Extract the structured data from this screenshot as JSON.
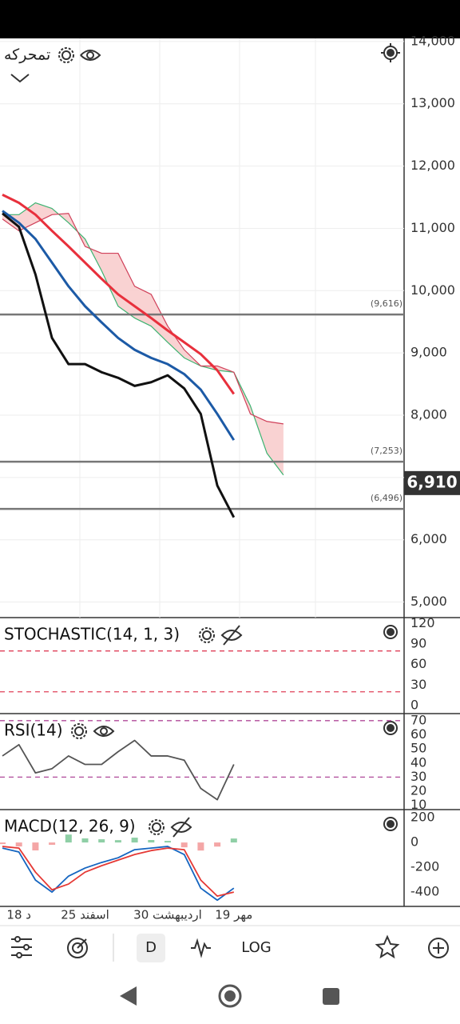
{
  "symbol": "تمحرکه",
  "toolbar": {
    "interval": "D",
    "log": "LOG"
  },
  "chart_data": [
    {
      "type": "line",
      "categories": [
        null,
        "18 د",
        null,
        null,
        null,
        "25 اسفند",
        null,
        null,
        null,
        null,
        "30 اردیبهشت",
        null,
        null,
        null,
        "19 مهر",
        null,
        null,
        null
      ],
      "ylim": [
        4750,
        14050
      ],
      "yticks": [
        {
          "value": 14000,
          "label": "14,000"
        },
        {
          "value": 13000,
          "label": "13,000"
        },
        {
          "value": 12000,
          "label": "12,000"
        },
        {
          "value": 11000,
          "label": "11,000"
        },
        {
          "value": 10000,
          "label": "10,000"
        },
        {
          "value": 9000,
          "label": "9,000"
        },
        {
          "value": 8000,
          "label": "8,000"
        },
        {
          "value": 7000,
          "label": "7,000"
        },
        {
          "value": 6000,
          "label": "6,000"
        },
        {
          "value": 5000,
          "label": "5,000"
        }
      ],
      "grid": true,
      "cloud": {
        "fill": "#f8caca",
        "span_a": {
          "color": "#3cb371",
          "values": [
            11220,
            11220,
            11410,
            11320,
            11090,
            10830,
            10320,
            9750,
            9560,
            9430,
            9170,
            8920,
            8790,
            8720,
            8690,
            8150,
            7390,
            7040
          ]
        },
        "span_b": {
          "color": "#d0415a",
          "values": [
            11150,
            10960,
            11090,
            11220,
            11240,
            10710,
            10600,
            10600,
            10070,
            9940,
            9430,
            9050,
            8790,
            8790,
            8690,
            8020,
            7900,
            7860
          ]
        }
      },
      "series": [
        {
          "color": "#e8303c",
          "values": [
            11540,
            11410,
            11220,
            10960,
            10710,
            10450,
            10190,
            9940,
            9750,
            9560,
            9360,
            9170,
            8980,
            8720,
            8340,
            null,
            null,
            null
          ]
        },
        {
          "color": "#1c5aa6",
          "values": [
            11280,
            11090,
            10830,
            10450,
            10070,
            9750,
            9490,
            9240,
            9050,
            8920,
            8820,
            8660,
            8410,
            8020,
            7600,
            null,
            null,
            null
          ]
        },
        {
          "color": "#111111",
          "values": [
            11240,
            11025,
            10260,
            9240,
            8820,
            8820,
            8690,
            8600,
            8470,
            8530,
            8640,
            8430,
            8020,
            6870,
            6360,
            null,
            null,
            null
          ]
        }
      ],
      "levels": [
        {
          "value": 9616,
          "label": "(9,616)"
        },
        {
          "value": 7253,
          "label": "(7,253)"
        },
        {
          "value": 6496,
          "label": "(6,496)"
        }
      ],
      "level_color": "#777777",
      "last_price": {
        "value": 6910,
        "label": "6,910"
      }
    },
    {
      "type": "line",
      "title": "STOCHASTIC(14, 1, 3)",
      "ylim": [
        -12,
        129
      ],
      "yticks": [
        120,
        90,
        60,
        30,
        0
      ],
      "bands": [
        80,
        20
      ],
      "band_color": "#e0405a",
      "series": []
    },
    {
      "type": "line",
      "title": "RSI(14)",
      "ylim": [
        7,
        75
      ],
      "yticks": [
        70,
        60,
        50,
        40,
        30,
        20,
        10
      ],
      "bands": [
        70,
        30
      ],
      "band_color": "#b04a9a",
      "series": [
        {
          "color": "#555555",
          "values": [
            45,
            53,
            33,
            36,
            45,
            39,
            39,
            48,
            56,
            45,
            45,
            42,
            22,
            14,
            39,
            null,
            null,
            null
          ]
        }
      ]
    },
    {
      "type": "line",
      "title": "MACD(12, 26, 9)",
      "ylim": [
        -515,
        265
      ],
      "yticks": [
        200,
        0,
        -200,
        -400
      ],
      "histogram": {
        "up_color": "#8fcfa6",
        "down_color": "#f4a6a6",
        "values": [
          -13,
          -32,
          -64,
          -19,
          64,
          33,
          26,
          19,
          39,
          20,
          13,
          -39,
          -65,
          -33,
          32,
          null,
          null,
          null
        ]
      },
      "series": [
        {
          "color": "#1565c0",
          "values": [
            -45,
            -77,
            -303,
            -400,
            -271,
            -206,
            -161,
            -123,
            -58,
            -45,
            -32,
            -97,
            -368,
            -465,
            -368,
            null,
            null,
            null
          ]
        },
        {
          "color": "#e53935",
          "values": [
            -32,
            -45,
            -239,
            -381,
            -335,
            -239,
            -187,
            -142,
            -97,
            -65,
            -45,
            -58,
            -303,
            -432,
            -400,
            null,
            null,
            null
          ]
        }
      ]
    }
  ]
}
